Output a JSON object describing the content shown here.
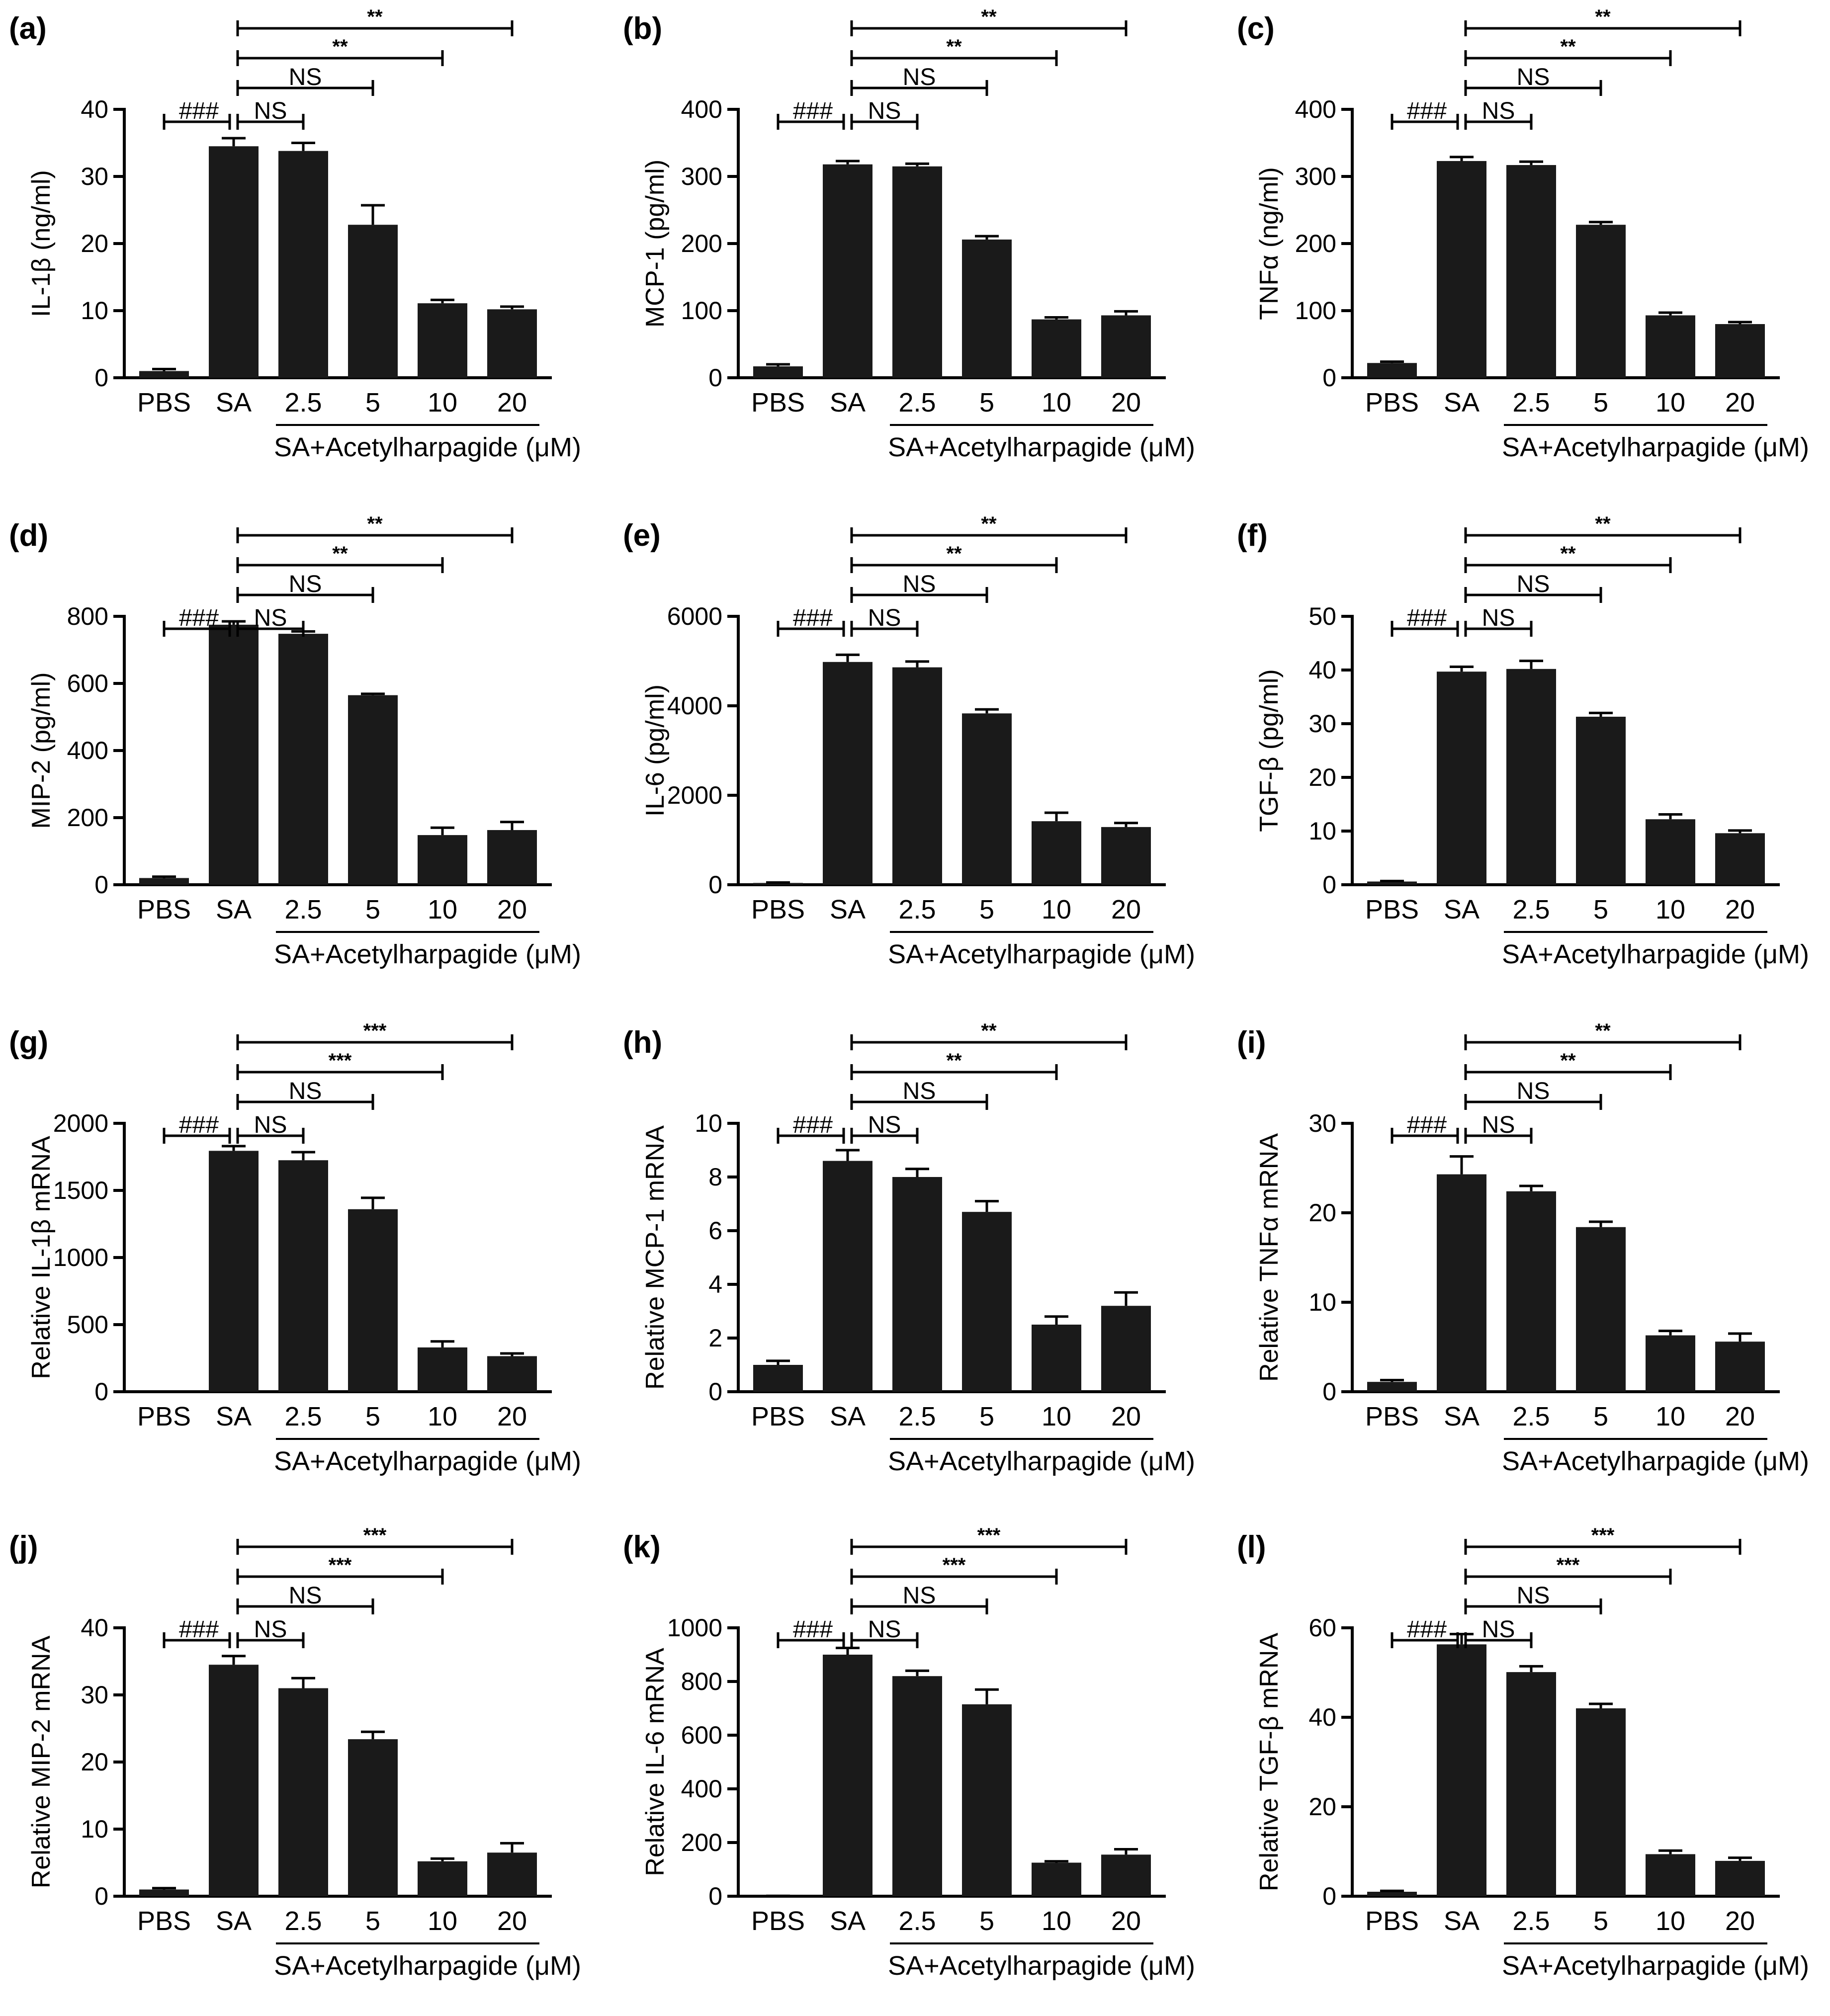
{
  "figure": {
    "categories": [
      "PBS",
      "SA",
      "2.5",
      "5",
      "10",
      "20"
    ],
    "group_label": "SA+Acetylharpagide (μM)"
  },
  "chart_data": [
    {
      "id": "a",
      "letter": "(a)",
      "type": "bar",
      "title": "",
      "xlabel": "SA+Acetylharpagide (μM)",
      "ylabel": "IL-1β (ng/ml)",
      "categories": [
        "PBS",
        "SA",
        "2.5",
        "5",
        "10",
        "20"
      ],
      "values": [
        1,
        34.5,
        33.8,
        22.8,
        11.1,
        10.2
      ],
      "errors": [
        0.3,
        1.2,
        1.2,
        2.9,
        0.5,
        0.4
      ],
      "ylim": [
        0,
        40
      ],
      "yticks": [
        "0",
        "10",
        "20",
        "30",
        "40"
      ],
      "sig_hash": "###",
      "sig_comparisons": [
        {
          "to": "2.5",
          "label": "NS"
        },
        {
          "to": "5",
          "label": "NS"
        },
        {
          "to": "10",
          "label": "**"
        },
        {
          "to": "20",
          "label": "**"
        }
      ]
    },
    {
      "id": "b",
      "letter": "(b)",
      "type": "bar",
      "title": "",
      "xlabel": "SA+Acetylharpagide (μM)",
      "ylabel": "MCP-1 (pg/ml)",
      "categories": [
        "PBS",
        "SA",
        "2.5",
        "5",
        "10",
        "20"
      ],
      "values": [
        17,
        318,
        315,
        206,
        87,
        93
      ],
      "errors": [
        3,
        5,
        4,
        5,
        3,
        6
      ],
      "ylim": [
        0,
        400
      ],
      "yticks": [
        "0",
        "100",
        "200",
        "300",
        "400"
      ],
      "sig_hash": "###",
      "sig_comparisons": [
        {
          "to": "2.5",
          "label": "NS"
        },
        {
          "to": "5",
          "label": "NS"
        },
        {
          "to": "10",
          "label": "**"
        },
        {
          "to": "20",
          "label": "**"
        }
      ]
    },
    {
      "id": "c",
      "letter": "(c)",
      "type": "bar",
      "title": "",
      "xlabel": "SA+Acetylharpagide (μM)",
      "ylabel": "TNFα (ng/ml)",
      "categories": [
        "PBS",
        "SA",
        "2.5",
        "5",
        "10",
        "20"
      ],
      "values": [
        22,
        323,
        317,
        228,
        93,
        80
      ],
      "errors": [
        2,
        6,
        5,
        4,
        4,
        3
      ],
      "ylim": [
        0,
        400
      ],
      "yticks": [
        "0",
        "100",
        "200",
        "300",
        "400"
      ],
      "sig_hash": "###",
      "sig_comparisons": [
        {
          "to": "2.5",
          "label": "NS"
        },
        {
          "to": "5",
          "label": "NS"
        },
        {
          "to": "10",
          "label": "**"
        },
        {
          "to": "20",
          "label": "**"
        }
      ]
    },
    {
      "id": "d",
      "letter": "(d)",
      "type": "bar",
      "title": "",
      "xlabel": "SA+Acetylharpagide (μM)",
      "ylabel": "MIP-2 (pg/ml)",
      "categories": [
        "PBS",
        "SA",
        "2.5",
        "5",
        "10",
        "20"
      ],
      "values": [
        20,
        775,
        748,
        565,
        148,
        163
      ],
      "errors": [
        4,
        10,
        7,
        4,
        22,
        24
      ],
      "ylim": [
        0,
        800
      ],
      "yticks": [
        "0",
        "200",
        "400",
        "600",
        "800"
      ],
      "sig_hash": "###",
      "sig_comparisons": [
        {
          "to": "2.5",
          "label": "NS"
        },
        {
          "to": "5",
          "label": "NS"
        },
        {
          "to": "10",
          "label": "**"
        },
        {
          "to": "20",
          "label": "**"
        }
      ]
    },
    {
      "id": "e",
      "letter": "(e)",
      "type": "bar",
      "title": "",
      "xlabel": "SA+Acetylharpagide (μM)",
      "ylabel": "IL-6 (pg/ml)",
      "categories": [
        "PBS",
        "SA",
        "2.5",
        "5",
        "10",
        "20"
      ],
      "values": [
        40,
        4980,
        4860,
        3830,
        1420,
        1290
      ],
      "errors": [
        10,
        160,
        130,
        90,
        190,
        90
      ],
      "ylim": [
        0,
        6000
      ],
      "yticks": [
        "0",
        "2000",
        "4000",
        "6000"
      ],
      "sig_hash": "###",
      "sig_comparisons": [
        {
          "to": "2.5",
          "label": "NS"
        },
        {
          "to": "5",
          "label": "NS"
        },
        {
          "to": "10",
          "label": "**"
        },
        {
          "to": "20",
          "label": "**"
        }
      ]
    },
    {
      "id": "f",
      "letter": "(f)",
      "type": "bar",
      "title": "",
      "xlabel": "SA+Acetylharpagide (μM)",
      "ylabel": "TGF-β (pg/ml)",
      "categories": [
        "PBS",
        "SA",
        "2.5",
        "5",
        "10",
        "20"
      ],
      "values": [
        0.6,
        39.7,
        40.2,
        31.3,
        12.2,
        9.6
      ],
      "errors": [
        0.1,
        0.9,
        1.5,
        0.7,
        0.9,
        0.5
      ],
      "ylim": [
        0,
        50
      ],
      "yticks": [
        "0",
        "10",
        "20",
        "30",
        "40",
        "50"
      ],
      "sig_hash": "###",
      "sig_comparisons": [
        {
          "to": "2.5",
          "label": "NS"
        },
        {
          "to": "5",
          "label": "NS"
        },
        {
          "to": "10",
          "label": "**"
        },
        {
          "to": "20",
          "label": "**"
        }
      ]
    },
    {
      "id": "g",
      "letter": "(g)",
      "type": "bar",
      "title": "",
      "xlabel": "SA+Acetylharpagide (μM)",
      "ylabel": "Relative IL-1β mRNA",
      "categories": [
        "PBS",
        "SA",
        "2.5",
        "5",
        "10",
        "20"
      ],
      "values": [
        1,
        1795,
        1725,
        1360,
        330,
        265
      ],
      "errors": [
        0.5,
        35,
        60,
        85,
        45,
        20
      ],
      "ylim": [
        0,
        2000
      ],
      "yticks": [
        "0",
        "500",
        "1000",
        "1500",
        "2000"
      ],
      "sig_hash": "###",
      "sig_comparisons": [
        {
          "to": "2.5",
          "label": "NS"
        },
        {
          "to": "5",
          "label": "NS"
        },
        {
          "to": "10",
          "label": "***"
        },
        {
          "to": "20",
          "label": "***"
        }
      ]
    },
    {
      "id": "h",
      "letter": "(h)",
      "type": "bar",
      "title": "",
      "xlabel": "SA+Acetylharpagide (μM)",
      "ylabel": "Relative MCP-1 mRNA",
      "categories": [
        "PBS",
        "SA",
        "2.5",
        "5",
        "10",
        "20"
      ],
      "values": [
        1,
        8.6,
        8.0,
        6.7,
        2.5,
        3.2
      ],
      "errors": [
        0.15,
        0.4,
        0.3,
        0.4,
        0.3,
        0.5
      ],
      "ylim": [
        0,
        10
      ],
      "yticks": [
        "0",
        "2",
        "4",
        "6",
        "8",
        "10"
      ],
      "sig_hash": "###",
      "sig_comparisons": [
        {
          "to": "2.5",
          "label": "NS"
        },
        {
          "to": "5",
          "label": "NS"
        },
        {
          "to": "10",
          "label": "**"
        },
        {
          "to": "20",
          "label": "**"
        }
      ]
    },
    {
      "id": "i",
      "letter": "(i)",
      "type": "bar",
      "title": "",
      "xlabel": "SA+Acetylharpagide (μM)",
      "ylabel": "Relative TNFα mRNA",
      "categories": [
        "PBS",
        "SA",
        "2.5",
        "5",
        "10",
        "20"
      ],
      "values": [
        1.1,
        24.3,
        22.4,
        18.4,
        6.3,
        5.6
      ],
      "errors": [
        0.2,
        2.0,
        0.6,
        0.6,
        0.5,
        0.9
      ],
      "ylim": [
        0,
        30
      ],
      "yticks": [
        "0",
        "10",
        "20",
        "30"
      ],
      "sig_hash": "###",
      "sig_comparisons": [
        {
          "to": "2.5",
          "label": "NS"
        },
        {
          "to": "5",
          "label": "NS"
        },
        {
          "to": "10",
          "label": "**"
        },
        {
          "to": "20",
          "label": "**"
        }
      ]
    },
    {
      "id": "j",
      "letter": "(j)",
      "type": "bar",
      "title": "",
      "xlabel": "SA+Acetylharpagide (μM)",
      "ylabel": "Relative MIP-2 mRNA",
      "categories": [
        "PBS",
        "SA",
        "2.5",
        "5",
        "10",
        "20"
      ],
      "values": [
        1,
        34.5,
        31,
        23.4,
        5.2,
        6.5
      ],
      "errors": [
        0.2,
        1.3,
        1.5,
        1.1,
        0.4,
        1.4
      ],
      "ylim": [
        0,
        40
      ],
      "yticks": [
        "0",
        "10",
        "20",
        "30",
        "40"
      ],
      "sig_hash": "###",
      "sig_comparisons": [
        {
          "to": "2.5",
          "label": "NS"
        },
        {
          "to": "5",
          "label": "NS"
        },
        {
          "to": "10",
          "label": "***"
        },
        {
          "to": "20",
          "label": "***"
        }
      ]
    },
    {
      "id": "k",
      "letter": "(k)",
      "type": "bar",
      "title": "",
      "xlabel": "SA+Acetylharpagide (μM)",
      "ylabel": "Relative IL-6 mRNA",
      "categories": [
        "PBS",
        "SA",
        "2.5",
        "5",
        "10",
        "20"
      ],
      "values": [
        1,
        900,
        820,
        715,
        125,
        155
      ],
      "errors": [
        0.5,
        25,
        20,
        55,
        5,
        20
      ],
      "ylim": [
        0,
        1000
      ],
      "yticks": [
        "0",
        "200",
        "400",
        "600",
        "800",
        "1000"
      ],
      "sig_hash": "###",
      "sig_comparisons": [
        {
          "to": "2.5",
          "label": "NS"
        },
        {
          "to": "5",
          "label": "NS"
        },
        {
          "to": "10",
          "label": "***"
        },
        {
          "to": "20",
          "label": "***"
        }
      ]
    },
    {
      "id": "l",
      "letter": "(l)",
      "type": "bar",
      "title": "",
      "xlabel": "SA+Acetylharpagide (μM)",
      "ylabel": "Relative TGF-β mRNA",
      "categories": [
        "PBS",
        "SA",
        "2.5",
        "5",
        "10",
        "20"
      ],
      "values": [
        1,
        56.3,
        50.1,
        42,
        9.4,
        7.9
      ],
      "errors": [
        0.2,
        2.3,
        1.3,
        1.0,
        0.8,
        0.7
      ],
      "ylim": [
        0,
        60
      ],
      "yticks": [
        "0",
        "20",
        "40",
        "60"
      ],
      "sig_hash": "###",
      "sig_comparisons": [
        {
          "to": "2.5",
          "label": "NS"
        },
        {
          "to": "5",
          "label": "NS"
        },
        {
          "to": "10",
          "label": "***"
        },
        {
          "to": "20",
          "label": "***"
        }
      ]
    }
  ]
}
